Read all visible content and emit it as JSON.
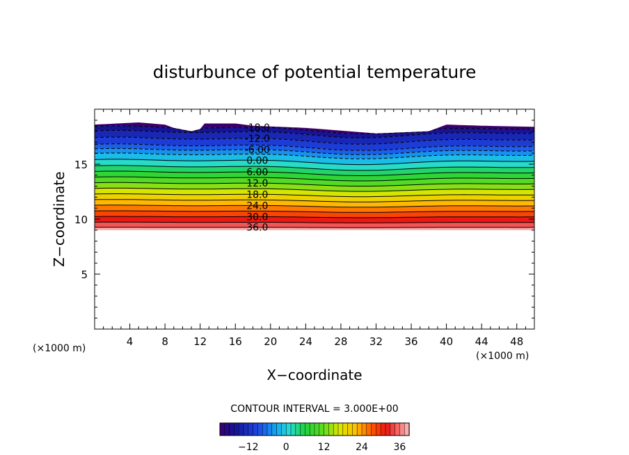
{
  "chart_data": {
    "type": "contour",
    "title": "disturbunce of potential temperature",
    "xlabel": "X−coordinate",
    "ylabel": "Z−coordinate",
    "x_unit": "(×1000 m)",
    "z_unit": "(×1000 m)",
    "xlim": [
      0,
      50
    ],
    "zlim": [
      0,
      20
    ],
    "x_ticks": [
      4,
      8,
      12,
      16,
      20,
      24,
      28,
      32,
      36,
      40,
      44,
      48
    ],
    "z_ticks": [
      5,
      10,
      15
    ],
    "contour_interval_text": "CONTOUR INTERVAL = 3.000E+00",
    "contour_levels": [
      -18,
      -15,
      -12,
      -9,
      -6,
      -3,
      0,
      3,
      6,
      9,
      12,
      15,
      18,
      21,
      24,
      27,
      30,
      33,
      36
    ],
    "level_heights": [
      18.2,
      17.8,
      17.2,
      16.6,
      16.2,
      15.8,
      15.25,
      14.7,
      14.2,
      13.7,
      13.2,
      12.7,
      12.2,
      11.7,
      11.2,
      10.7,
      10.2,
      9.7,
      9.25
    ],
    "contour_labels": [
      "-18.0",
      "-12.0",
      "-6.00",
      "0.00",
      "6.00",
      "12.0",
      "18.0",
      "24.0",
      "30.0",
      "36.0"
    ],
    "top_boundary": [
      [
        0,
        18.6
      ],
      [
        5,
        18.8
      ],
      [
        8,
        18.6
      ],
      [
        9,
        18.3
      ],
      [
        11,
        18.0
      ],
      [
        12,
        18.2
      ],
      [
        12.5,
        18.7
      ],
      [
        16,
        18.7
      ],
      [
        18,
        18.5
      ],
      [
        24,
        18.3
      ],
      [
        32,
        17.8
      ],
      [
        38,
        18.0
      ],
      [
        40,
        18.6
      ],
      [
        44,
        18.5
      ],
      [
        50,
        18.4
      ]
    ],
    "bottom_boundary_z": 9.0,
    "colorbar": {
      "min": -21,
      "max": 39,
      "ticks": [
        -12,
        0,
        12,
        24,
        36
      ]
    }
  }
}
